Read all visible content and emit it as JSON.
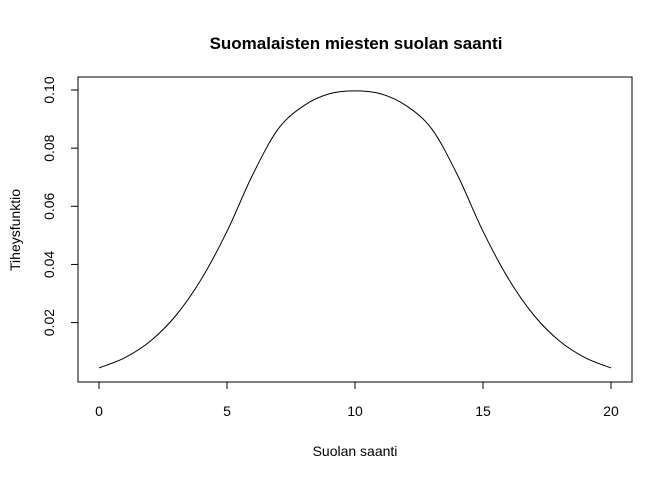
{
  "chart_data": {
    "type": "line",
    "title": "Suomalaisten miesten suolan saanti",
    "xlabel": "Suolan saanti",
    "ylabel": "Tiheysfunktio",
    "xlim": [
      0,
      20
    ],
    "ylim": [
      0.0037,
      0.1
    ],
    "x_ticks": [
      0,
      5,
      10,
      15,
      20
    ],
    "y_ticks": [
      0.02,
      0.04,
      0.06,
      0.08,
      0.1
    ],
    "x_tick_labels": [
      "0",
      "5",
      "10",
      "15",
      "20"
    ],
    "y_tick_labels": [
      "0.02",
      "0.04",
      "0.06",
      "0.08",
      "0.10"
    ],
    "grid": false,
    "legend": "none",
    "line_color": "#000000",
    "series": [
      {
        "x": [
          0,
          1,
          2,
          3,
          4,
          5,
          6,
          7,
          8,
          9,
          10,
          11,
          12,
          13,
          14,
          15,
          16,
          17,
          18,
          19,
          20
        ],
        "values": [
          0.0044,
          0.0079,
          0.0136,
          0.0224,
          0.035,
          0.0514,
          0.0708,
          0.0866,
          0.0946,
          0.0987,
          0.0997,
          0.0987,
          0.0946,
          0.0866,
          0.0708,
          0.0514,
          0.035,
          0.0224,
          0.0136,
          0.0079,
          0.0044
        ]
      }
    ]
  }
}
